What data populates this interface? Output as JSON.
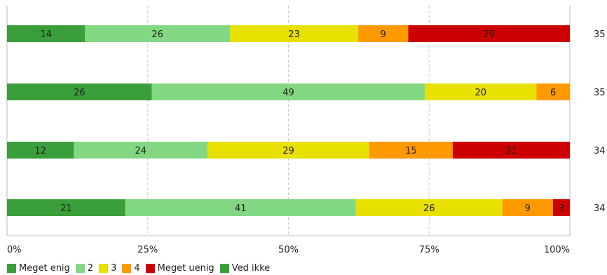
{
  "chart_data": {
    "type": "bar",
    "orientation": "horizontal",
    "stacked": true,
    "percent_scale": true,
    "xlim": [
      0,
      100
    ],
    "x_ticks": [
      "0%",
      "25%",
      "50%",
      "75%",
      "100%"
    ],
    "grid": true,
    "legend_position": "bottom-left",
    "series": [
      {
        "name": "Meget enig",
        "color": "#3a9e3a",
        "values": [
          14,
          26,
          12,
          21
        ]
      },
      {
        "name": "2",
        "color": "#82d882",
        "values": [
          26,
          49,
          24,
          41
        ]
      },
      {
        "name": "3",
        "color": "#e8e000",
        "values": [
          23,
          20,
          29,
          26
        ]
      },
      {
        "name": "4",
        "color": "#ff9900",
        "values": [
          9,
          6,
          15,
          9
        ]
      },
      {
        "name": "Meget uenig",
        "color": "#cc0000",
        "values": [
          29,
          0,
          21,
          3
        ]
      },
      {
        "name": "Ved ikke",
        "color": "#3a9e3a",
        "values": [
          0,
          0,
          0,
          0
        ]
      }
    ],
    "row_totals": [
      "35",
      "35",
      "34",
      "34"
    ]
  }
}
